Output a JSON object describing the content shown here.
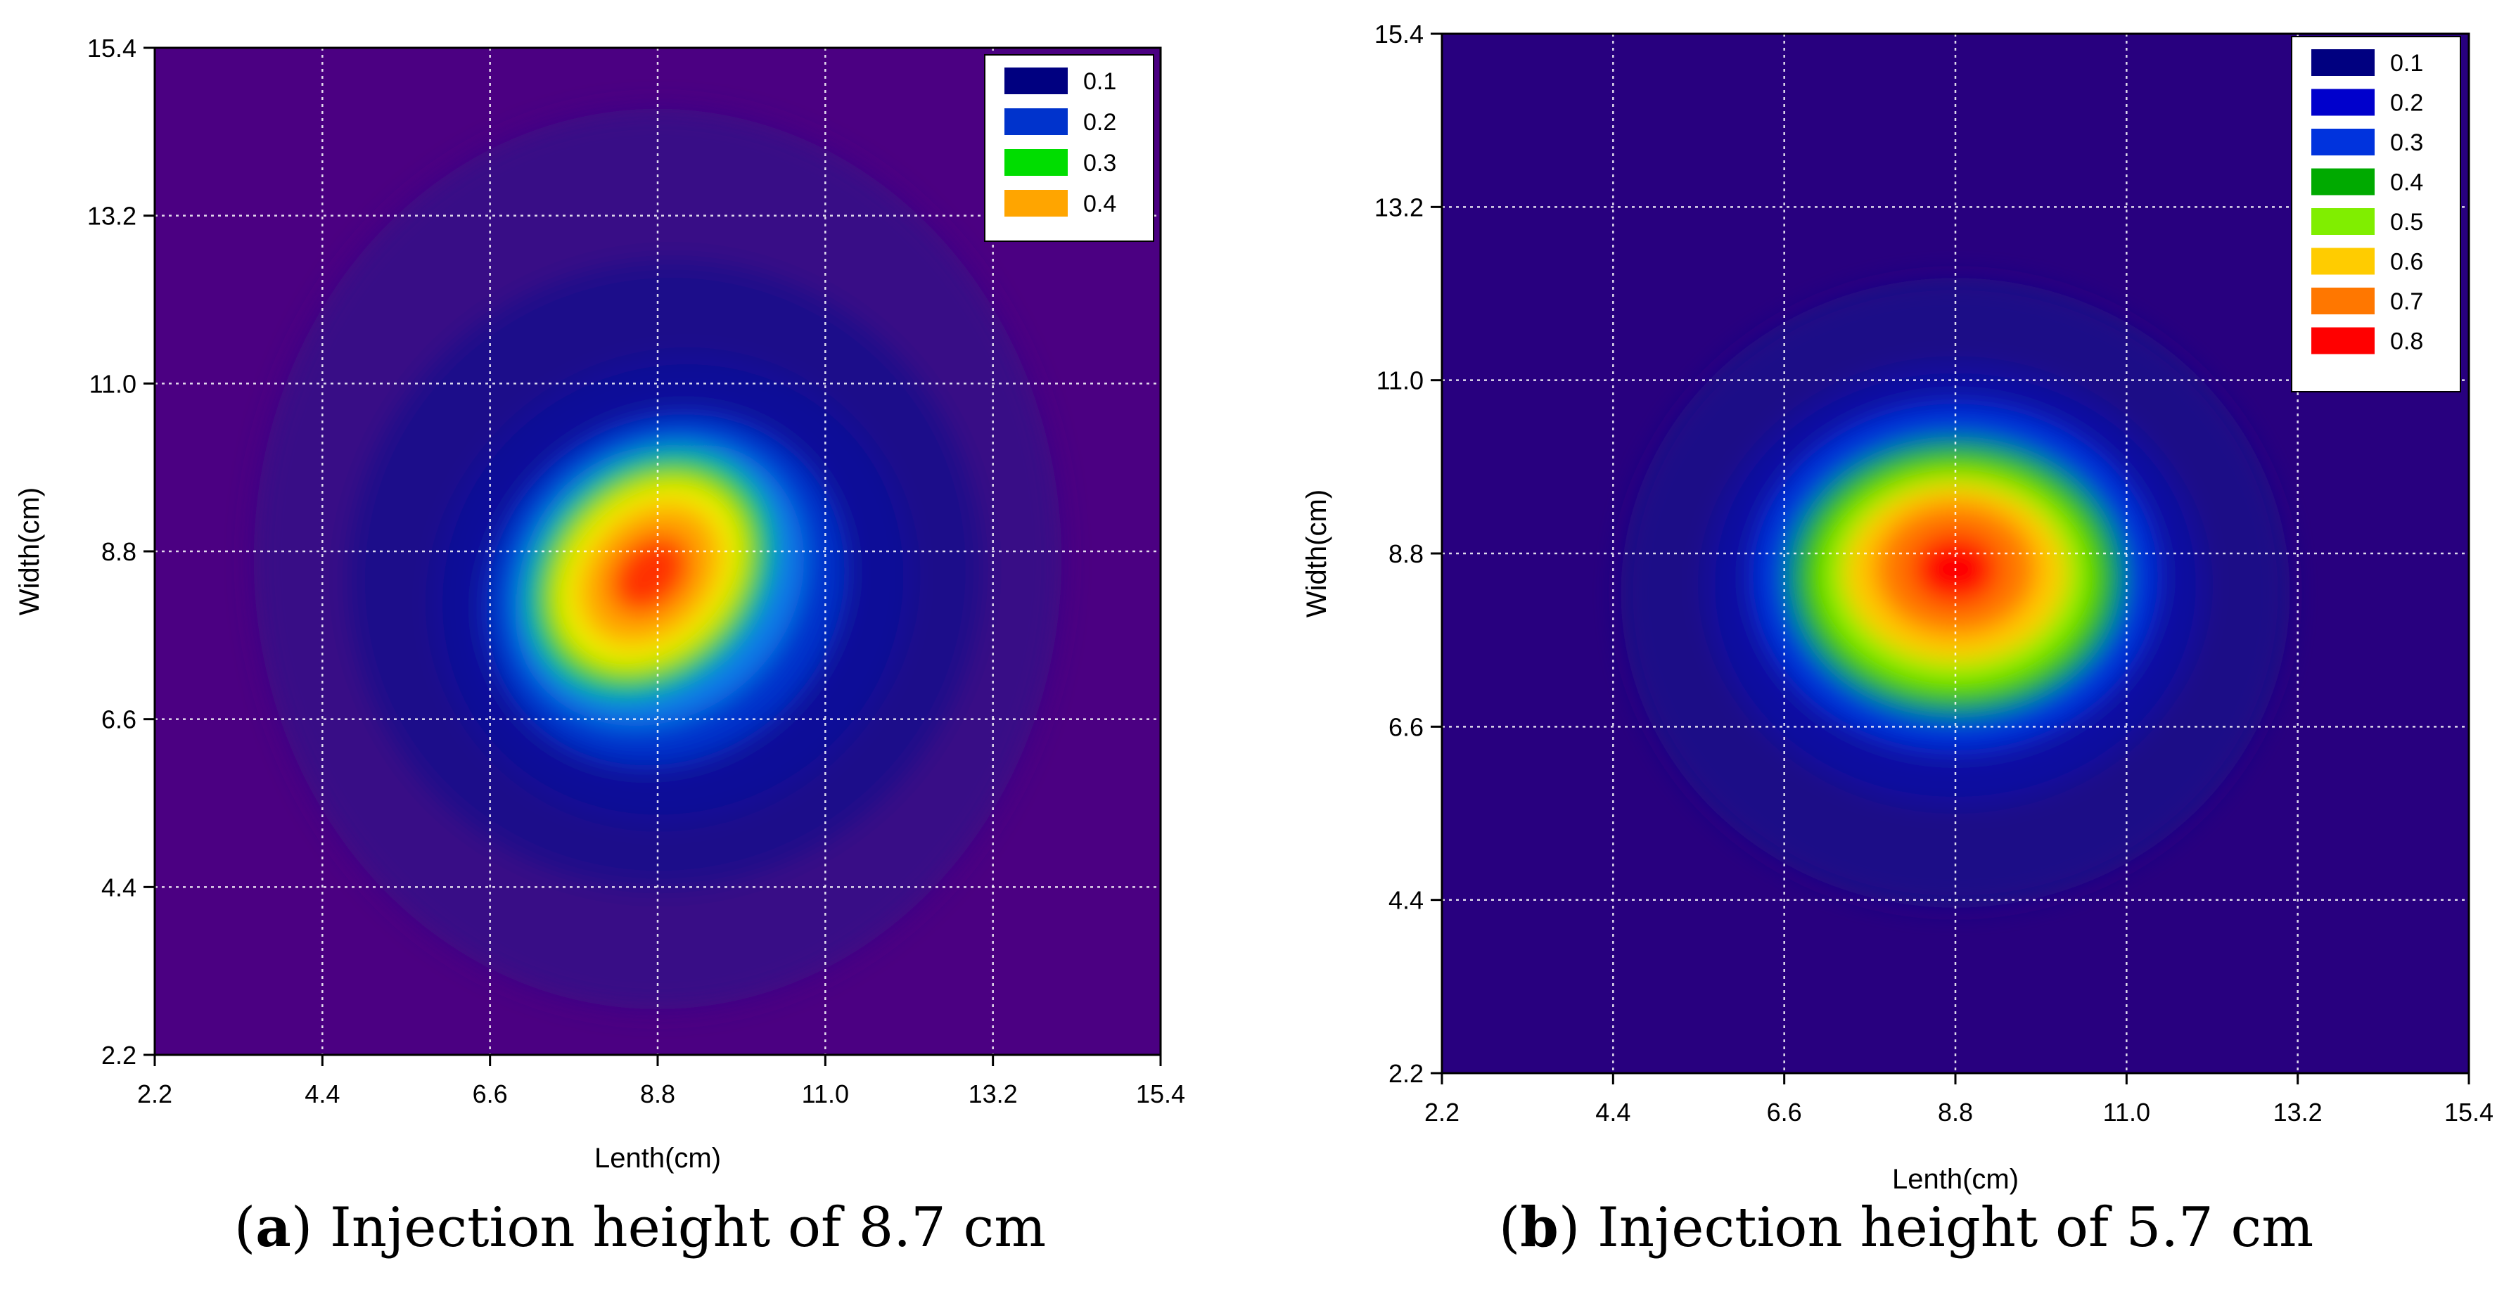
{
  "chart_data": [
    {
      "type": "contour",
      "panel_label": "a",
      "caption": "Injection height of 8.7 cm",
      "xlabel": "Lenth(cm)",
      "ylabel": "Width(cm)",
      "xlim": [
        2.2,
        15.4
      ],
      "ylim": [
        2.2,
        15.4
      ],
      "xticks": [
        "2.2",
        "4.4",
        "6.6",
        "8.8",
        "11.0",
        "13.2",
        "15.4"
      ],
      "yticks": [
        "2.2",
        "4.4",
        "6.6",
        "8.8",
        "11.0",
        "13.2",
        "15.4"
      ],
      "grid": true,
      "legend_position": "top-right",
      "legend": [
        {
          "label": "0.1",
          "color": "#000080"
        },
        {
          "label": "0.2",
          "color": "#0033cc"
        },
        {
          "label": "0.3",
          "color": "#00dd00"
        },
        {
          "label": "0.4",
          "color": "#ffa500"
        }
      ],
      "background_color": "#4b0082",
      "peak": {
        "x": 8.7,
        "y": 8.5,
        "value": 0.48
      },
      "levels": [
        {
          "value": 0.05,
          "color": "#380d86",
          "cx": 8.8,
          "cy": 8.7,
          "rx": 5.3,
          "ry": 5.9,
          "angle": 0
        },
        {
          "value": 0.1,
          "color": "#1d0a8a",
          "cx": 8.9,
          "cy": 8.5,
          "rx": 4.2,
          "ry": 4.1,
          "angle": -30
        },
        {
          "value": 0.15,
          "color": "#0b0f98",
          "cx": 9.0,
          "cy": 8.3,
          "rx": 3.2,
          "ry": 3.0,
          "angle": -35
        },
        {
          "value": 0.2,
          "color": "#0033cc",
          "cx": 8.9,
          "cy": 8.3,
          "rx": 2.45,
          "ry": 2.2,
          "angle": -40
        },
        {
          "value": 0.25,
          "color": "#0a7ae8",
          "cx": 8.8,
          "cy": 8.4,
          "rx": 2.05,
          "ry": 1.75,
          "angle": -42
        },
        {
          "value": 0.3,
          "color": "#00cc00",
          "cx": 8.7,
          "cy": 8.5,
          "rx": 1.75,
          "ry": 1.4,
          "angle": -45
        },
        {
          "value": 0.35,
          "color": "#f0f000",
          "cx": 8.7,
          "cy": 8.5,
          "rx": 1.4,
          "ry": 1.1,
          "angle": -45
        },
        {
          "value": 0.4,
          "color": "#ffa500",
          "cx": 8.7,
          "cy": 8.5,
          "rx": 1.05,
          "ry": 0.8,
          "angle": -45
        },
        {
          "value": 0.45,
          "color": "#ff3300",
          "cx": 8.7,
          "cy": 8.5,
          "rx": 0.6,
          "ry": 0.45,
          "angle": -45
        }
      ]
    },
    {
      "type": "contour",
      "panel_label": "b",
      "caption": "Injection height of 5.7 cm",
      "xlabel": "Lenth(cm)",
      "ylabel": "Width(cm)",
      "xlim": [
        2.2,
        15.4
      ],
      "ylim": [
        2.2,
        15.4
      ],
      "xticks": [
        "2.2",
        "4.4",
        "6.6",
        "8.8",
        "11.0",
        "13.2",
        "15.4"
      ],
      "yticks": [
        "2.2",
        "4.4",
        "6.6",
        "8.8",
        "11.0",
        "13.2",
        "15.4"
      ],
      "grid": true,
      "legend_position": "top-right",
      "legend": [
        {
          "label": "0.1",
          "color": "#000080"
        },
        {
          "label": "0.2",
          "color": "#0000cc"
        },
        {
          "label": "0.3",
          "color": "#0033dd"
        },
        {
          "label": "0.4",
          "color": "#00aa00"
        },
        {
          "label": "0.5",
          "color": "#80ee00"
        },
        {
          "label": "0.6",
          "color": "#ffcc00"
        },
        {
          "label": "0.7",
          "color": "#ff7700"
        },
        {
          "label": "0.8",
          "color": "#ff0000"
        }
      ],
      "background_color": "#28007f",
      "peak": {
        "x": 8.8,
        "y": 8.6,
        "value": 0.85
      },
      "levels": [
        {
          "value": 0.1,
          "color": "#1a0787",
          "cx": 8.8,
          "cy": 8.3,
          "rx": 4.3,
          "ry": 4.0,
          "angle": 0
        },
        {
          "value": 0.2,
          "color": "#0a0ca0",
          "cx": 8.8,
          "cy": 8.4,
          "rx": 3.2,
          "ry": 2.8,
          "angle": 0
        },
        {
          "value": 0.3,
          "color": "#0033dd",
          "cx": 8.8,
          "cy": 8.5,
          "rx": 2.6,
          "ry": 2.2,
          "angle": 0
        },
        {
          "value": 0.4,
          "color": "#00aa00",
          "cx": 8.8,
          "cy": 8.5,
          "rx": 2.15,
          "ry": 1.75,
          "angle": 0
        },
        {
          "value": 0.5,
          "color": "#80ee00",
          "cx": 8.8,
          "cy": 8.5,
          "rx": 1.8,
          "ry": 1.45,
          "angle": 0
        },
        {
          "value": 0.6,
          "color": "#ffcc00",
          "cx": 8.8,
          "cy": 8.55,
          "rx": 1.45,
          "ry": 1.15,
          "angle": 0
        },
        {
          "value": 0.7,
          "color": "#ff7700",
          "cx": 8.8,
          "cy": 8.6,
          "rx": 1.05,
          "ry": 0.85,
          "angle": 0
        },
        {
          "value": 0.8,
          "color": "#ff0000",
          "cx": 8.8,
          "cy": 8.6,
          "rx": 0.55,
          "ry": 0.45,
          "angle": 0
        }
      ]
    }
  ]
}
